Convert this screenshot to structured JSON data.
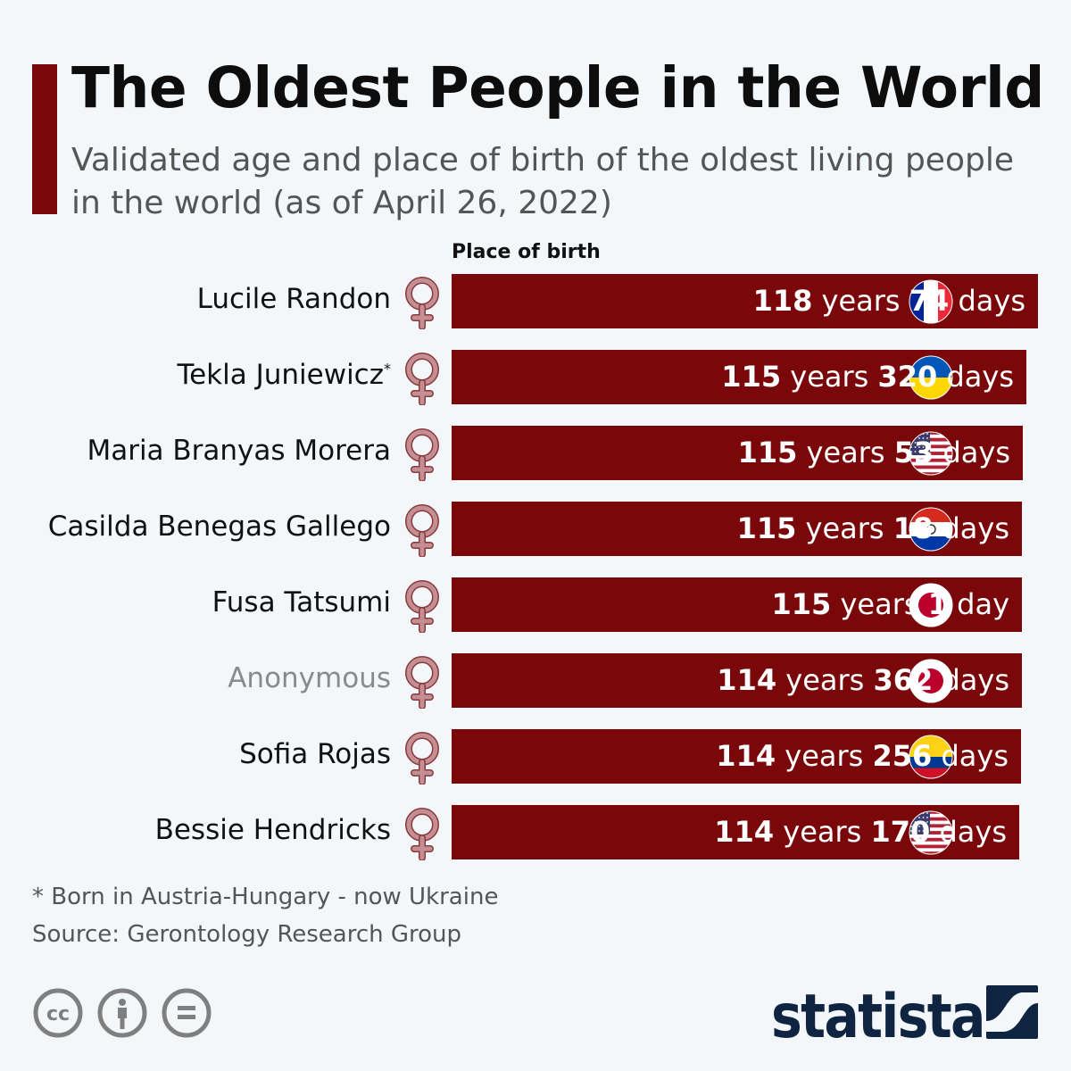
{
  "title": "The Oldest People in the World",
  "subtitle": "Validated age and place of birth of the oldest living people in the world (as of April 26, 2022)",
  "column_header": "Place of birth",
  "colors": {
    "bar": "#7a080b",
    "accent": "#7a080b",
    "venus": "#c48f92",
    "text": "#111111",
    "muted": "#555555",
    "anonymous": "#8a8a8a",
    "logo": "#0f2440"
  },
  "chart_data": {
    "type": "bar",
    "orientation": "horizontal",
    "title": "The Oldest People in the World",
    "unit": "years",
    "xlim": [
      0,
      118.2
    ],
    "categories": [
      "Lucile Randon",
      "Tekla Juniewicz",
      "Maria Branyas Morera",
      "Casilda Benegas Gallego",
      "Fusa Tatsumi",
      "Anonymous",
      "Sofia Rojas",
      "Bessie Hendricks"
    ],
    "values": [
      118.2,
      115.88,
      115.15,
      115.05,
      115.0,
      114.99,
      114.7,
      114.47
    ],
    "rows": [
      {
        "name": "Lucile Randon",
        "marker": "",
        "gender": "female",
        "flag": "france",
        "years": "118",
        "days": "74",
        "years_unit": "years",
        "days_unit": "days"
      },
      {
        "name": "Tekla Juniewicz",
        "marker": "*",
        "gender": "female",
        "flag": "ukraine",
        "years": "115",
        "days": "320",
        "years_unit": "years",
        "days_unit": "days"
      },
      {
        "name": "Maria Branyas Morera",
        "marker": "",
        "gender": "female",
        "flag": "usa",
        "years": "115",
        "days": "53",
        "years_unit": "years",
        "days_unit": "days"
      },
      {
        "name": "Casilda Benegas Gallego",
        "marker": "",
        "gender": "female",
        "flag": "paraguay",
        "years": "115",
        "days": "18",
        "years_unit": "years",
        "days_unit": "days"
      },
      {
        "name": "Fusa Tatsumi",
        "marker": "",
        "gender": "female",
        "flag": "japan",
        "years": "115",
        "days": "1",
        "years_unit": "years",
        "days_unit": "day"
      },
      {
        "name": "Anonymous",
        "marker": "",
        "gender": "female",
        "flag": "japan",
        "years": "114",
        "days": "362",
        "years_unit": "years",
        "days_unit": "days",
        "anonymous": true
      },
      {
        "name": "Sofia Rojas",
        "marker": "",
        "gender": "female",
        "flag": "colombia",
        "years": "114",
        "days": "256",
        "years_unit": "years",
        "days_unit": "days"
      },
      {
        "name": "Bessie Hendricks",
        "marker": "",
        "gender": "female",
        "flag": "usa",
        "years": "114",
        "days": "170",
        "years_unit": "years",
        "days_unit": "days"
      }
    ]
  },
  "footnote": "* Born in Austria-Hungary - now Ukraine",
  "source": "Source: Gerontology Research Group",
  "license_icons": [
    "cc-icon",
    "attribution-icon",
    "no-derivatives-icon"
  ],
  "brand": "statista"
}
